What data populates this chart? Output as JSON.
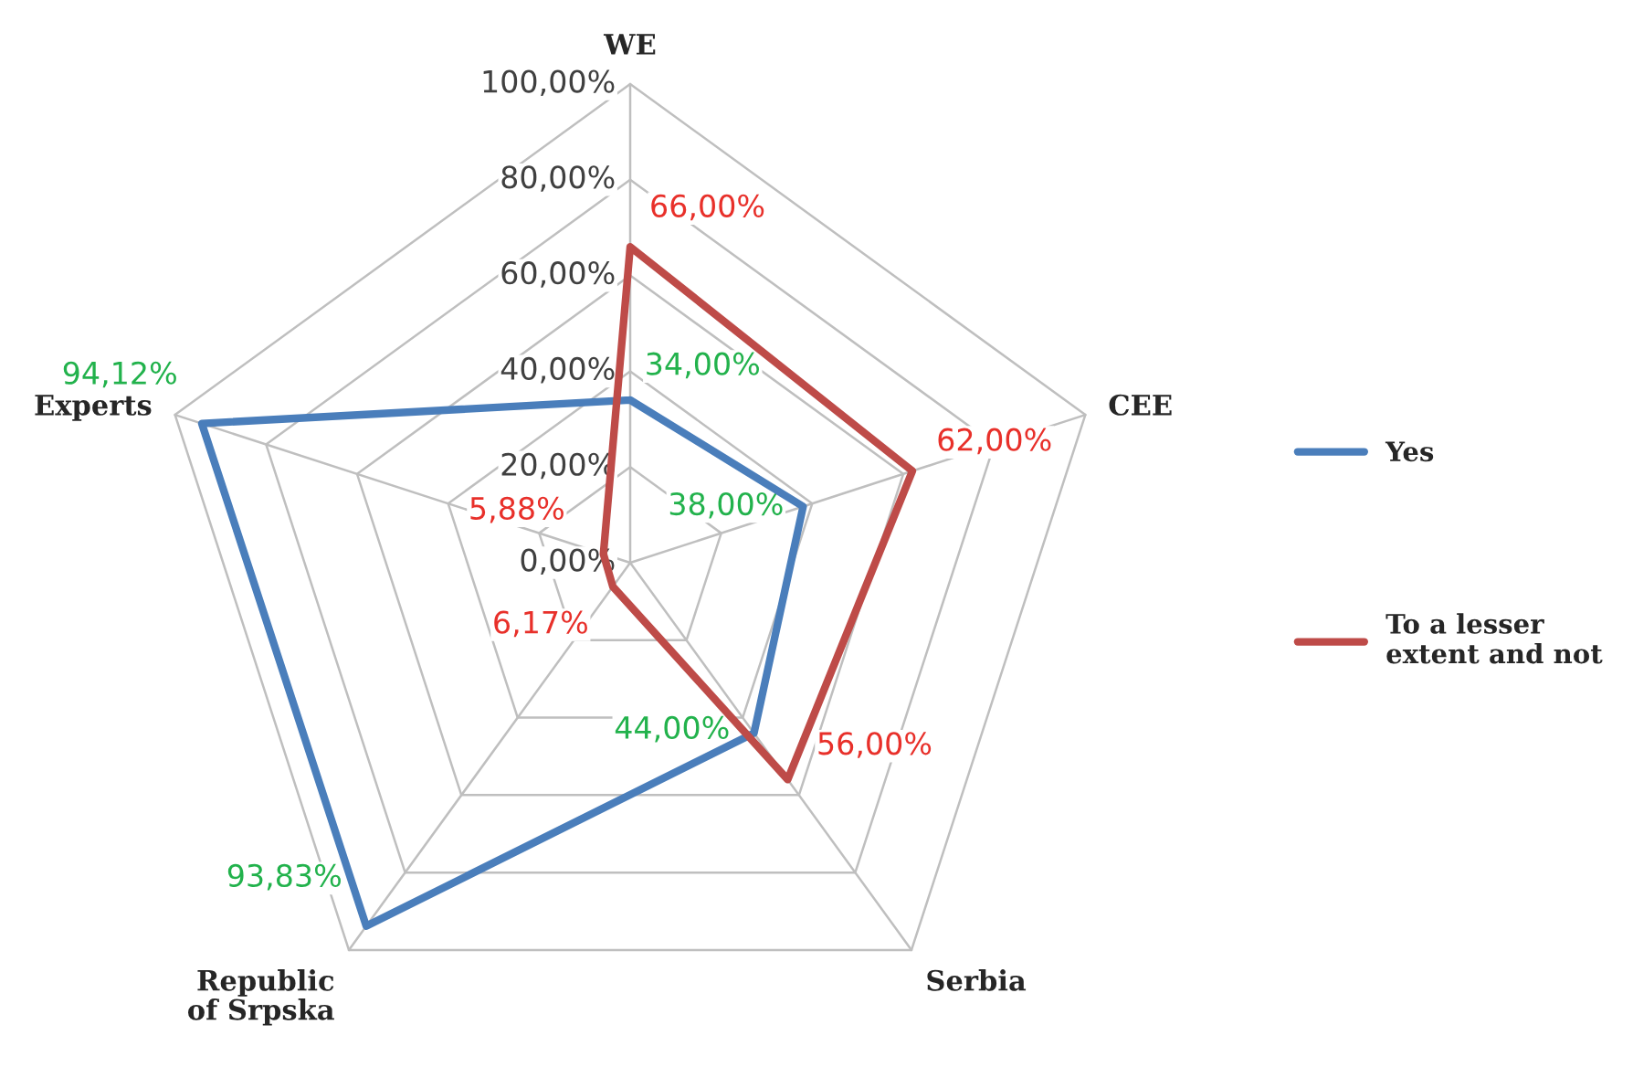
{
  "chart_data": {
    "type": "radar",
    "categories": [
      "WE",
      "CEE",
      "Serbia",
      "Republic\nof Srpska",
      "Experts"
    ],
    "ylim": [
      0,
      100
    ],
    "yticks": [
      {
        "value": 0,
        "label": "0,00%"
      },
      {
        "value": 20,
        "label": "20,00%"
      },
      {
        "value": 40,
        "label": "40,00%"
      },
      {
        "value": 60,
        "label": "60,00%"
      },
      {
        "value": 80,
        "label": "80,00%"
      },
      {
        "value": 100,
        "label": "100,00%"
      }
    ],
    "series": [
      {
        "name": "Yes",
        "color": "#4a7ebb",
        "values": [
          34,
          38,
          44,
          93.83,
          94.12
        ],
        "value_labels": [
          "34,00%",
          "38,00%",
          "44,00%",
          "93,83%",
          "94,12%"
        ]
      },
      {
        "name": "To a lesser\nextent and not",
        "color": "#be4b48",
        "values": [
          66,
          62,
          56,
          6.17,
          5.88
        ],
        "value_labels": [
          "66,00%",
          "62,00%",
          "56,00%",
          "6,17%",
          "5,88%"
        ]
      }
    ],
    "grid": true,
    "legend": "right",
    "marker": "none",
    "line_style": "solid"
  }
}
